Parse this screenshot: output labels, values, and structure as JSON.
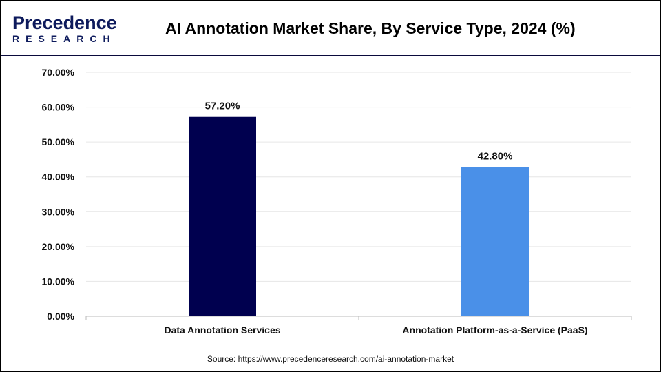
{
  "header": {
    "logo_text": "Precedence",
    "logo_subtext": "RESEARCH",
    "title": "AI Annotation Market Share, By Service Type, 2024 (%)"
  },
  "chart_data": {
    "type": "bar",
    "title": "AI Annotation Market Share, By Service Type, 2024 (%)",
    "categories": [
      "Data Annotation Services",
      "Annotation Platform-as-a-Service (PaaS)"
    ],
    "values": [
      57.2,
      42.8
    ],
    "data_labels": [
      "57.20%",
      "42.80%"
    ],
    "colors": [
      "#00004f",
      "#4a90e8"
    ],
    "ylim": [
      0,
      70
    ],
    "yticks": [
      "0.00%",
      "10.00%",
      "20.00%",
      "30.00%",
      "40.00%",
      "50.00%",
      "60.00%",
      "70.00%"
    ],
    "grid": true,
    "xlabel": "",
    "ylabel": ""
  },
  "source": "Source: https://www.precedenceresearch.com/ai-annotation-market"
}
